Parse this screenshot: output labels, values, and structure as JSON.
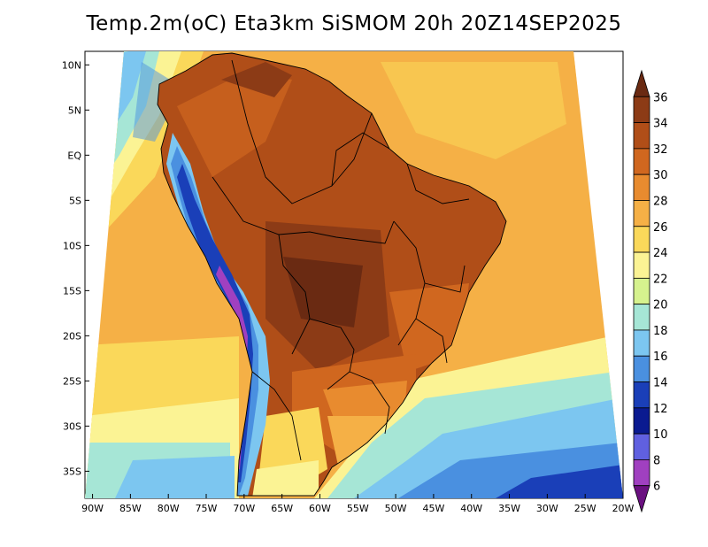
{
  "title": "Temp.2m(oC) Eta3km SiSMOM 20h 20Z14SEP2025",
  "axes": {
    "y_labels": [
      "10N",
      "5N",
      "EQ",
      "5S",
      "10S",
      "15S",
      "20S",
      "25S",
      "30S",
      "35S"
    ],
    "y_values": [
      10,
      5,
      0,
      -5,
      -10,
      -15,
      -20,
      -25,
      -30,
      -35
    ],
    "x_labels": [
      "90W",
      "85W",
      "80W",
      "75W",
      "70W",
      "65W",
      "60W",
      "55W",
      "50W",
      "45W",
      "40W",
      "35W",
      "30W",
      "25W",
      "20W"
    ],
    "x_values": [
      -90,
      -85,
      -80,
      -75,
      -70,
      -65,
      -60,
      -55,
      -50,
      -45,
      -40,
      -35,
      -30,
      -25,
      -20
    ],
    "lon_range": [
      -91,
      -20
    ],
    "lat_range": [
      -38,
      11.5
    ]
  },
  "colorbar": {
    "labels": [
      "36",
      "34",
      "32",
      "30",
      "28",
      "26",
      "24",
      "22",
      "20",
      "18",
      "16",
      "14",
      "12",
      "10",
      "8",
      "6"
    ],
    "colors": [
      "#6a2a12",
      "#8c3b16",
      "#b04e18",
      "#d0671f",
      "#e88b2f",
      "#f5b046",
      "#fad85a",
      "#fbf394",
      "#d6f28e",
      "#a6e6d6",
      "#7cc6f0",
      "#4a90e0",
      "#1a3fb8",
      "#0a1a90",
      "#6060e0",
      "#a040c0",
      "#6a1080"
    ]
  }
}
